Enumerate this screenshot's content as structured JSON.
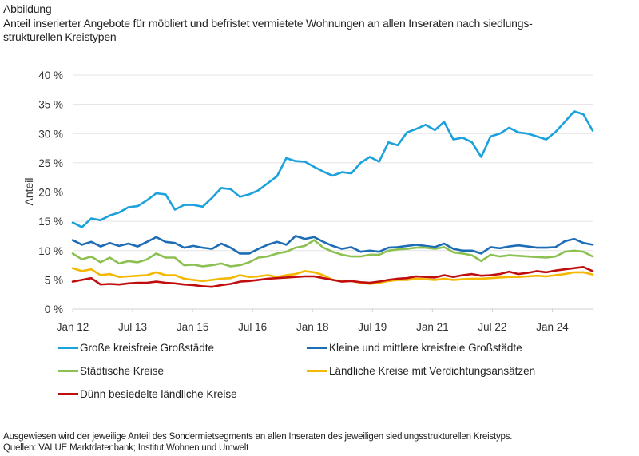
{
  "header": {
    "label": "Abbildung",
    "title_line1": "Anteil inserierter Angebote für möbliert und befristet vermietete Wohnungen an allen Inseraten nach siedlungs-",
    "title_line2": "strukturellen Kreistypen"
  },
  "footer": {
    "note": "Ausgewiesen wird der jeweilige Anteil des Sondermietsegments an allen Inseraten des jeweiligen siedlungsstrukturellen Kreistyps.",
    "sources": "Quellen: VALUE Marktdatenbank; Institut Wohnen und Umwelt"
  },
  "chart_data": {
    "type": "line",
    "title": "Anteil inserierter Angebote für möbliert und befristet vermietete Wohnungen an allen Inseraten nach siedlungsstrukturellen Kreistypen",
    "xlabel": "",
    "ylabel": "Anteil",
    "ylim": [
      0,
      40
    ],
    "yticks": [
      0,
      5,
      10,
      15,
      20,
      25,
      30,
      35,
      40
    ],
    "ytick_labels": [
      "0 %",
      "5 %",
      "10 %",
      "15 %",
      "20 %",
      "25 %",
      "30 %",
      "35 %",
      "40 %"
    ],
    "x_start": "2012-01",
    "x_step_months": 3,
    "x_end_months": 156,
    "xticks_months": [
      0,
      18,
      36,
      54,
      72,
      90,
      108,
      126,
      144
    ],
    "xtick_labels": [
      "Jan 12",
      "Jul 13",
      "Jan 15",
      "Jul 16",
      "Jan 18",
      "Jul 19",
      "Jan 21",
      "Jul 22",
      "Jan 24"
    ],
    "grid": true,
    "legend_position": "bottom",
    "series": [
      {
        "name": "Große kreisfreie Großstädte",
        "color": "#1ba1dc",
        "values": [
          14.8,
          14.0,
          15.5,
          15.2,
          16.0,
          16.5,
          17.4,
          17.6,
          18.6,
          19.8,
          19.6,
          17.0,
          17.8,
          17.8,
          17.5,
          19.0,
          20.7,
          20.5,
          19.2,
          19.6,
          20.3,
          21.5,
          22.7,
          25.8,
          25.3,
          25.2,
          24.3,
          23.5,
          22.8,
          23.4,
          23.2,
          25.0,
          26.0,
          25.2,
          28.5,
          28.0,
          30.2,
          30.8,
          31.5,
          30.6,
          32.0,
          29.0,
          29.3,
          28.5,
          26.0,
          29.5,
          30.0,
          31.0,
          30.2,
          30.0,
          29.5,
          29.0,
          30.3,
          32.0,
          33.8,
          33.3,
          30.5
        ]
      },
      {
        "name": "Kleine und mittlere kreisfreie Großstädte",
        "color": "#1c6db5",
        "values": [
          11.8,
          11.0,
          11.5,
          10.7,
          11.3,
          10.8,
          11.2,
          10.7,
          11.5,
          12.3,
          11.5,
          11.3,
          10.5,
          10.8,
          10.5,
          10.3,
          11.2,
          10.5,
          9.5,
          9.5,
          10.3,
          11.0,
          11.5,
          11.0,
          12.5,
          12.0,
          12.3,
          11.5,
          10.8,
          10.3,
          10.6,
          9.8,
          10.0,
          9.8,
          10.5,
          10.6,
          10.8,
          11.0,
          10.8,
          10.6,
          11.2,
          10.3,
          10.0,
          10.0,
          9.5,
          10.6,
          10.4,
          10.7,
          10.9,
          10.7,
          10.5,
          10.5,
          10.6,
          11.6,
          12.0,
          11.3,
          11.0
        ]
      },
      {
        "name": "Städtische Kreise",
        "color": "#8cc152",
        "values": [
          9.5,
          8.5,
          9.0,
          8.0,
          8.8,
          7.8,
          8.2,
          8.0,
          8.5,
          9.5,
          8.8,
          8.8,
          7.5,
          7.6,
          7.3,
          7.5,
          7.8,
          7.3,
          7.5,
          8.0,
          8.8,
          9.0,
          9.5,
          9.8,
          10.5,
          10.8,
          11.8,
          10.5,
          9.8,
          9.3,
          9.0,
          9.0,
          9.3,
          9.3,
          10.0,
          10.2,
          10.3,
          10.5,
          10.5,
          10.3,
          10.6,
          9.7,
          9.5,
          9.2,
          8.2,
          9.3,
          9.0,
          9.2,
          9.1,
          9.0,
          8.9,
          8.8,
          9.0,
          9.8,
          10.0,
          9.8,
          9.0
        ]
      },
      {
        "name": "Ländliche Kreise mit Verdichtungsansätzen",
        "color": "#f5b800",
        "values": [
          7.0,
          6.5,
          6.8,
          5.8,
          6.0,
          5.5,
          5.6,
          5.7,
          5.8,
          6.3,
          5.8,
          5.8,
          5.2,
          5.0,
          4.8,
          5.0,
          5.2,
          5.3,
          5.8,
          5.5,
          5.6,
          5.8,
          5.5,
          5.8,
          6.0,
          6.5,
          6.3,
          5.8,
          5.0,
          4.8,
          4.8,
          4.5,
          4.3,
          4.5,
          4.8,
          5.0,
          5.0,
          5.2,
          5.1,
          5.0,
          5.2,
          5.0,
          5.1,
          5.2,
          5.2,
          5.3,
          5.4,
          5.5,
          5.5,
          5.6,
          5.7,
          5.6,
          5.8,
          6.0,
          6.3,
          6.3,
          5.9
        ]
      },
      {
        "name": "Dünn besiedelte ländliche Kreise",
        "color": "#c00d0d",
        "values": [
          4.7,
          5.0,
          5.3,
          4.2,
          4.3,
          4.2,
          4.4,
          4.5,
          4.5,
          4.7,
          4.5,
          4.4,
          4.2,
          4.1,
          3.9,
          3.8,
          4.1,
          4.3,
          4.7,
          4.8,
          5.0,
          5.2,
          5.3,
          5.4,
          5.5,
          5.6,
          5.6,
          5.3,
          5.0,
          4.7,
          4.8,
          4.6,
          4.5,
          4.7,
          5.0,
          5.2,
          5.3,
          5.6,
          5.5,
          5.4,
          5.8,
          5.5,
          5.8,
          6.0,
          5.7,
          5.8,
          6.0,
          6.4,
          6.0,
          6.2,
          6.5,
          6.3,
          6.6,
          6.8,
          7.0,
          7.2,
          6.5
        ]
      }
    ]
  }
}
